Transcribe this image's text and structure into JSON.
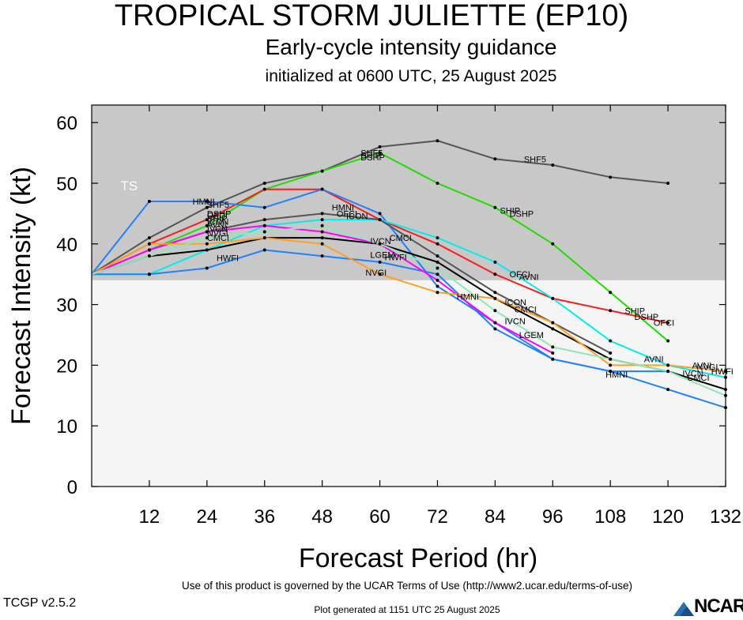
{
  "header": {
    "title": "TROPICAL STORM JULIETTE (EP10)",
    "subtitle": "Early-cycle intensity guidance",
    "initialized": "initialized at 0600 UTC, 25 August 2025"
  },
  "footer": {
    "terms": "Use of this product is governed by the UCAR Terms of Use (http://www2.ucar.edu/terms-of-use)",
    "version": "TCGP v2.5.2",
    "generated": "Plot generated at 1151 UTC   25 August 2025",
    "logo_text": "NCAR"
  },
  "chart_data": {
    "type": "line",
    "xlabel": "Forecast Period (hr)",
    "ylabel": "Forecast Intensity (kt)",
    "xlim": [
      0,
      132
    ],
    "ylim": [
      0,
      63
    ],
    "xticks": [
      12,
      24,
      36,
      48,
      60,
      72,
      84,
      96,
      108,
      120,
      132
    ],
    "yticks": [
      0,
      10,
      20,
      30,
      40,
      50,
      60
    ],
    "shading": {
      "upper_band_above_kt": 34,
      "upper_color": "#c8c8c8",
      "lower_color": "#f5f5f5"
    },
    "band_label": "TS",
    "series": [
      {
        "name": "SHF5",
        "color": "#555555",
        "points": [
          [
            0,
            35
          ],
          [
            12,
            41
          ],
          [
            24,
            46
          ],
          [
            36,
            50
          ],
          [
            48,
            52
          ],
          [
            60,
            56
          ],
          [
            72,
            57
          ],
          [
            84,
            54
          ],
          [
            96,
            53
          ],
          [
            108,
            51
          ],
          [
            120,
            50
          ]
        ],
        "labels": [
          {
            "text": "SHF5",
            "x": 24,
            "y": 46.5
          },
          {
            "text": "SHF5",
            "x": 56,
            "y": 55
          },
          {
            "text": "SHF5",
            "x": 90,
            "y": 54
          }
        ]
      },
      {
        "name": "DSHP",
        "color": "#22dd00",
        "points": [
          [
            0,
            35
          ],
          [
            12,
            39
          ],
          [
            24,
            43
          ],
          [
            36,
            49
          ],
          [
            48,
            52
          ],
          [
            60,
            55
          ],
          [
            72,
            50
          ],
          [
            84,
            46
          ],
          [
            96,
            40
          ],
          [
            108,
            32
          ],
          [
            120,
            24
          ]
        ],
        "labels": [
          {
            "text": "DSHP",
            "x": 24,
            "y": 45
          },
          {
            "text": "DSHP",
            "x": 56,
            "y": 54.3
          },
          {
            "text": "DSHP",
            "x": 87,
            "y": 45
          },
          {
            "text": "DSHP",
            "x": 113,
            "y": 28
          }
        ]
      },
      {
        "name": "SHIP",
        "color": "#22dd00",
        "points": [],
        "labels": [
          {
            "text": "SHIP",
            "x": 24,
            "y": 44.2
          },
          {
            "text": "SHIP",
            "x": 56,
            "y": 54.6
          },
          {
            "text": "SHIP",
            "x": 85,
            "y": 45.5
          },
          {
            "text": "SHIP",
            "x": 111,
            "y": 29
          }
        ]
      },
      {
        "name": "OFCI",
        "color": "#ff1a1a",
        "points": [
          [
            0,
            35
          ],
          [
            12,
            40
          ],
          [
            24,
            44
          ],
          [
            36,
            49
          ],
          [
            48,
            49
          ],
          [
            60,
            44
          ],
          [
            72,
            40
          ],
          [
            84,
            35
          ],
          [
            96,
            31
          ],
          [
            108,
            29
          ],
          [
            120,
            27
          ]
        ],
        "labels": [
          {
            "text": "OFCI",
            "x": 24,
            "y": 44.7
          },
          {
            "text": "OFCI",
            "x": 51,
            "y": 45
          },
          {
            "text": "OFCI",
            "x": 87,
            "y": 35
          },
          {
            "text": "OFCI",
            "x": 117,
            "y": 27
          }
        ]
      },
      {
        "name": "HMNI",
        "color": "#2080ff",
        "points": [
          [
            0,
            35
          ],
          [
            12,
            47
          ],
          [
            24,
            47
          ],
          [
            36,
            46
          ],
          [
            48,
            49
          ],
          [
            60,
            45
          ],
          [
            72,
            33
          ],
          [
            84,
            27
          ],
          [
            96,
            21
          ],
          [
            108,
            19
          ],
          [
            120,
            19
          ]
        ],
        "labels": [
          {
            "text": "HMNI",
            "x": 21,
            "y": 47
          },
          {
            "text": "HMNI",
            "x": 50,
            "y": 46
          },
          {
            "text": "HMNI",
            "x": 76,
            "y": 31.3
          },
          {
            "text": "HMNI",
            "x": 107,
            "y": 18.5
          },
          {
            "text": "HWFI",
            "x": 129,
            "y": 19
          }
        ]
      },
      {
        "name": "AVNI",
        "color": "#00eeee",
        "points": [
          [
            0,
            35
          ],
          [
            12,
            35
          ],
          [
            24,
            39
          ],
          [
            36,
            43
          ],
          [
            48,
            44
          ],
          [
            60,
            44
          ],
          [
            72,
            41
          ],
          [
            84,
            37
          ],
          [
            96,
            31
          ],
          [
            108,
            24
          ],
          [
            120,
            20
          ],
          [
            132,
            18
          ]
        ],
        "labels": [
          {
            "text": "AVNI",
            "x": 24,
            "y": 43.2
          },
          {
            "text": "AVNI",
            "x": 89,
            "y": 34.6
          },
          {
            "text": "AVNI",
            "x": 115,
            "y": 21
          },
          {
            "text": "AVNI",
            "x": 125,
            "y": 20
          }
        ]
      },
      {
        "name": "IVCN",
        "color": "#000000",
        "points": [
          [
            0,
            35
          ],
          [
            12,
            38
          ],
          [
            24,
            39
          ],
          [
            36,
            41
          ],
          [
            48,
            41
          ],
          [
            60,
            40
          ],
          [
            72,
            37
          ],
          [
            84,
            31
          ],
          [
            96,
            26
          ],
          [
            108,
            21
          ],
          [
            120,
            19
          ],
          [
            132,
            16
          ]
        ],
        "labels": [
          {
            "text": "IVCN",
            "x": 24,
            "y": 42.5
          },
          {
            "text": "IVCN",
            "x": 58,
            "y": 40.5
          },
          {
            "text": "IVCN",
            "x": 86,
            "y": 27.3
          },
          {
            "text": "IVCN",
            "x": 123,
            "y": 18.7
          }
        ]
      },
      {
        "name": "ICON",
        "color": "#555555",
        "points": [
          [
            0,
            35
          ],
          [
            12,
            39
          ],
          [
            24,
            42
          ],
          [
            36,
            44
          ],
          [
            48,
            45
          ],
          [
            60,
            44
          ],
          [
            72,
            38
          ],
          [
            84,
            32
          ],
          [
            96,
            27
          ],
          [
            108,
            22
          ]
        ],
        "labels": [
          {
            "text": "ICON",
            "x": 24,
            "y": 43.7
          },
          {
            "text": "ICON",
            "x": 53,
            "y": 44.6
          },
          {
            "text": "ICON",
            "x": 86,
            "y": 30.4
          }
        ]
      },
      {
        "name": "HWFI",
        "color": "#2080ff",
        "points": [
          [
            0,
            35
          ],
          [
            12,
            35
          ],
          [
            24,
            36
          ],
          [
            36,
            39
          ],
          [
            48,
            38
          ],
          [
            60,
            37
          ],
          [
            72,
            35
          ],
          [
            84,
            26
          ],
          [
            96,
            21
          ],
          [
            108,
            19
          ],
          [
            120,
            16
          ],
          [
            132,
            13
          ]
        ],
        "labels": [
          {
            "text": "HWFI",
            "x": 26,
            "y": 37.7
          },
          {
            "text": "HWFI",
            "x": 61,
            "y": 37.8
          }
        ]
      },
      {
        "name": "CMCI",
        "color": "#ff00ff",
        "points": [
          [
            0,
            35
          ],
          [
            12,
            39
          ],
          [
            24,
            42
          ],
          [
            36,
            43
          ],
          [
            48,
            42
          ],
          [
            60,
            40
          ],
          [
            72,
            34
          ],
          [
            84,
            27
          ],
          [
            96,
            22
          ]
        ],
        "labels": [
          {
            "text": "CMCI",
            "x": 24,
            "y": 41
          },
          {
            "text": "CMCI",
            "x": 62,
            "y": 41
          },
          {
            "text": "CMCI",
            "x": 88,
            "y": 29.2
          },
          {
            "text": "CMCI",
            "x": 124,
            "y": 18
          }
        ]
      },
      {
        "name": "NVGI",
        "color": "#ffa020",
        "points": [
          [
            0,
            35
          ],
          [
            12,
            40
          ],
          [
            24,
            40
          ],
          [
            36,
            41
          ],
          [
            48,
            40
          ],
          [
            60,
            35
          ],
          [
            72,
            32
          ],
          [
            84,
            31
          ],
          [
            96,
            27
          ],
          [
            108,
            20
          ],
          [
            120,
            20
          ],
          [
            132,
            19
          ]
        ],
        "labels": [
          {
            "text": "NVGI",
            "x": 24,
            "y": 41.8
          },
          {
            "text": "NVGI",
            "x": 57,
            "y": 35.3
          },
          {
            "text": "NVGI",
            "x": 126,
            "y": 19.7
          }
        ]
      },
      {
        "name": "LGEM",
        "color": "#8fe8b8",
        "points": [
          [
            0,
            35
          ],
          [
            12,
            38
          ],
          [
            24,
            41
          ],
          [
            36,
            42
          ],
          [
            48,
            43
          ],
          [
            60,
            40
          ],
          [
            72,
            36
          ],
          [
            84,
            29
          ],
          [
            96,
            23
          ],
          [
            108,
            21
          ],
          [
            120,
            19
          ],
          [
            132,
            15
          ]
        ],
        "labels": [
          {
            "text": "LGEM",
            "x": 58,
            "y": 38.2
          },
          {
            "text": "LGEM",
            "x": 89,
            "y": 25
          }
        ]
      }
    ]
  }
}
